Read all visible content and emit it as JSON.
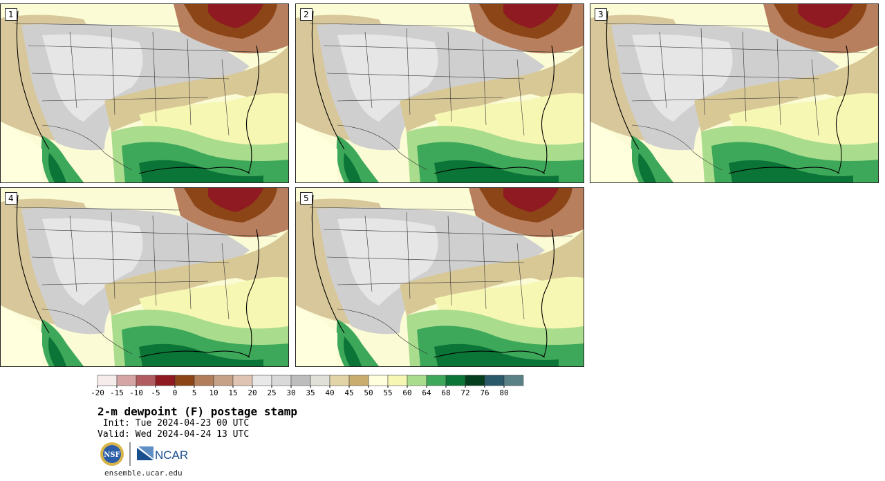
{
  "panels": [
    {
      "label": "1"
    },
    {
      "label": "2"
    },
    {
      "label": "3"
    },
    {
      "label": "4"
    },
    {
      "label": "5"
    }
  ],
  "colorbar": {
    "ticks": [
      "-20",
      "-15",
      "-10",
      "-5",
      "0",
      "5",
      "10",
      "15",
      "20",
      "25",
      "30",
      "35",
      "40",
      "45",
      "50",
      "55",
      "60",
      "64",
      "68",
      "72",
      "76",
      "80"
    ],
    "colors": [
      "#f6ecec",
      "#d5a5a6",
      "#b15c60",
      "#8f1a22",
      "#8c4516",
      "#b27d5b",
      "#c6a188",
      "#dfc4b3",
      "#e8e8e8",
      "#d9d9d9",
      "#bdbdbd",
      "#e0e0d8",
      "#e3d4a8",
      "#c9ad6e",
      "#ffffde",
      "#f7f7b4",
      "#a9dc8c",
      "#3ea85a",
      "#0b7437",
      "#053d1f",
      "#2a5a6a",
      "#5a8286"
    ]
  },
  "info": {
    "title": "2-m dewpoint (F) postage stamp",
    "init": " Init: Tue 2024-04-23 00 UTC",
    "valid": "Valid: Wed 2024-04-24 13 UTC",
    "website": "ensemble.ucar.edu",
    "nsf_logo": "NSF",
    "ncar_logo": "NCAR"
  }
}
